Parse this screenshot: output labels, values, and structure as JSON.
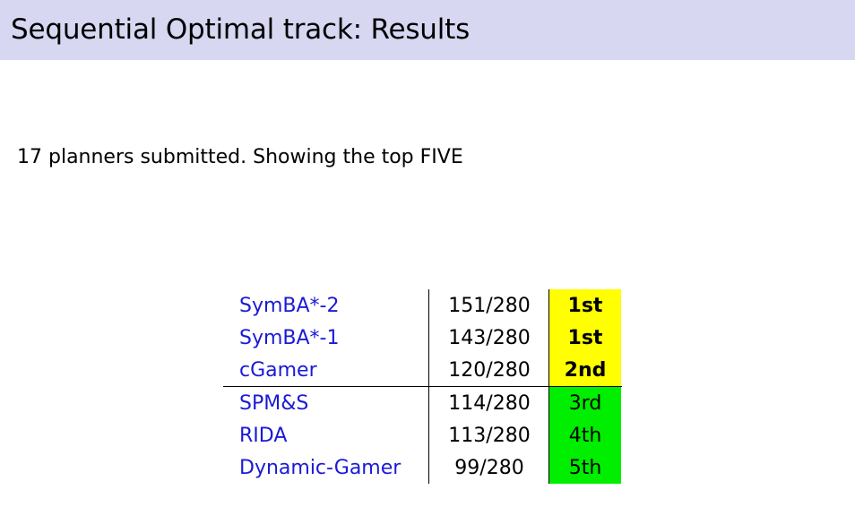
{
  "slide": {
    "title": "Sequential Optimal track: Results",
    "intro": "17 planners submitted. Showing the top FIVE"
  },
  "results": [
    {
      "planner": "SymBA*-2",
      "score": "151/280",
      "rank": "1st",
      "tier": "gold"
    },
    {
      "planner": "SymBA*-1",
      "score": "143/280",
      "rank": "1st",
      "tier": "gold"
    },
    {
      "planner": "cGamer",
      "score": "120/280",
      "rank": "2nd",
      "tier": "gold"
    },
    {
      "planner": "SPM&S",
      "score": "114/280",
      "rank": "3rd",
      "tier": "green"
    },
    {
      "planner": "RIDA",
      "score": "113/280",
      "rank": "4th",
      "tier": "green"
    },
    {
      "planner": "Dynamic-Gamer",
      "score": "99/280",
      "rank": "5th",
      "tier": "green"
    }
  ],
  "colors": {
    "title_bar": "#d7d7f2",
    "planner_link": "#1a1ad6",
    "medal_highlight": "#ffff00",
    "placed_highlight": "#00ee00"
  }
}
